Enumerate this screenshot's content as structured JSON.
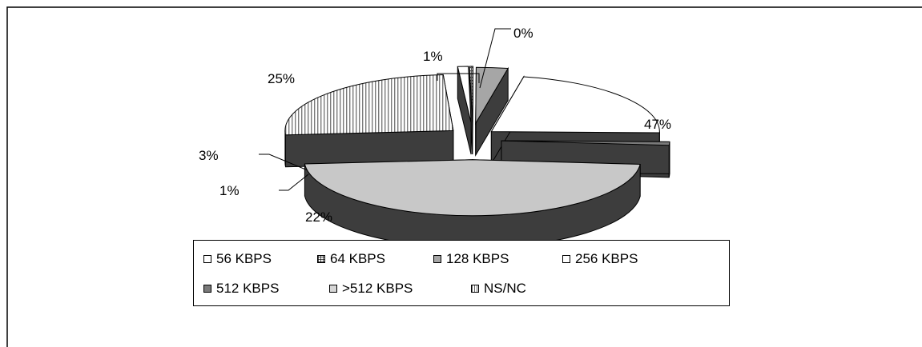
{
  "chart_data": {
    "type": "pie",
    "title": "",
    "exploded": true,
    "style": "3d",
    "series": [
      {
        "labels": [
          "56 KBPS",
          "64 KBPS",
          "128 KBPS",
          "256 KBPS",
          "512 KBPS",
          ">512 KBPS",
          "NS/NC"
        ],
        "values": [
          1,
          0,
          3,
          22,
          1,
          47,
          25
        ],
        "value_labels": [
          "1%",
          "0%",
          "3%",
          "22%",
          "1%",
          "47%",
          "25%"
        ]
      }
    ],
    "legend": {
      "placement": "bottom",
      "entries": [
        "56 KBPS",
        "64 KBPS",
        "128 KBPS",
        "256 KBPS",
        "512 KBPS",
        ">512 KBPS",
        "NS/NC"
      ]
    },
    "colors": {
      "56 KBPS": "#ffffff",
      "64 KBPS": "#cfcfcf",
      "128 KBPS": "#a6a6a6",
      "256 KBPS": "#ffffff",
      "512 KBPS": "#7a7a7a",
      ">512 KBPS": "#c8c8c8",
      "NS/NC": "#c4c4c4",
      "side": "#3d3d3d"
    }
  }
}
